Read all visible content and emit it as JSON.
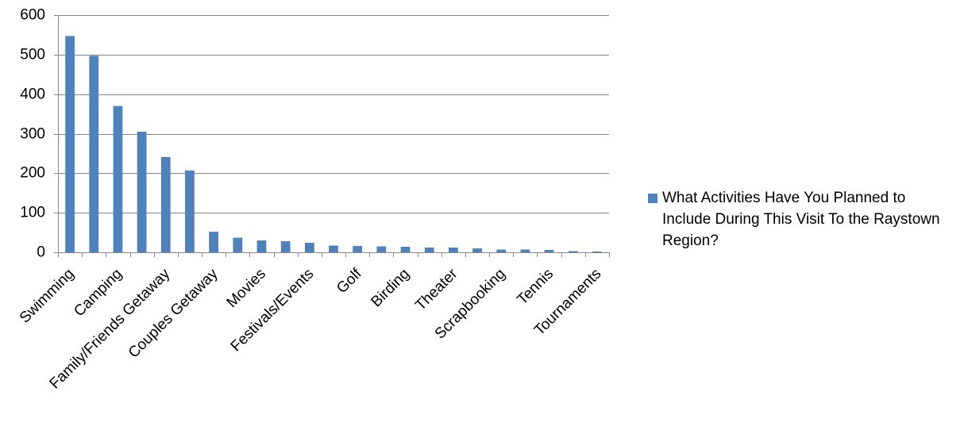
{
  "chart_data": {
    "type": "bar",
    "categories": [
      "Swimming",
      "",
      "Camping",
      "",
      "Family/Friends Getaway",
      "",
      "Couples Getaway",
      "",
      "Movies",
      "",
      "Festivals/Events",
      "",
      "Golf",
      "",
      "Birding",
      "",
      "Theater",
      "",
      "Scrapbooking",
      "",
      "Tennis",
      "",
      "Tournaments"
    ],
    "series": [
      {
        "name": "What Activities Have You Planned to Include During This Visit To the Raystown Region?",
        "values": [
          547,
          497,
          370,
          305,
          241,
          207,
          52,
          37,
          30,
          28,
          24,
          17,
          16,
          15,
          14,
          12,
          12,
          10,
          7,
          7,
          6,
          3,
          2
        ],
        "color": "#4F81BD"
      }
    ],
    "ylim": [
      0,
      600
    ],
    "yticks": [
      0,
      100,
      200,
      300,
      400,
      500,
      600
    ],
    "grid": true,
    "legend_position": "right",
    "gridline_color": "#868686"
  }
}
